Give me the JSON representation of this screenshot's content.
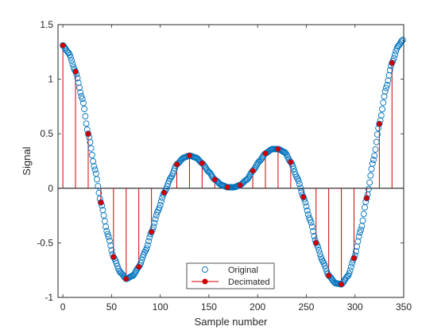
{
  "chart_data": {
    "type": "scatter",
    "xlabel": "Sample number",
    "ylabel": "Signal",
    "xlim": [
      -5,
      350
    ],
    "ylim": [
      -1,
      1.5
    ],
    "xticks": [
      0,
      50,
      100,
      150,
      200,
      250,
      300,
      350
    ],
    "xtick_labels": [
      "0",
      "50",
      "100",
      "150",
      "200",
      "250",
      "300",
      "350"
    ],
    "yticks": [
      -1,
      -0.5,
      0,
      0.5,
      1,
      1.5
    ],
    "ytick_labels": [
      "-1",
      "-0.5",
      "0",
      "0.5",
      "1",
      "1.5"
    ],
    "grid": false,
    "box": true,
    "legend_position": "bottom-center",
    "series": [
      {
        "name": "Original",
        "style": "open-circle markers",
        "color": "#0072BD",
        "x_start": 0,
        "x_end": 349,
        "x_step": 1,
        "control_points": [
          [
            0,
            1.31
          ],
          [
            6,
            1.24
          ],
          [
            13,
            1.07
          ],
          [
            20,
            0.82
          ],
          [
            26,
            0.5
          ],
          [
            33,
            0.17
          ],
          [
            39,
            -0.13
          ],
          [
            46,
            -0.42
          ],
          [
            52,
            -0.63
          ],
          [
            59,
            -0.77
          ],
          [
            65,
            -0.83
          ],
          [
            72,
            -0.8
          ],
          [
            78,
            -0.72
          ],
          [
            85,
            -0.57
          ],
          [
            91,
            -0.4
          ],
          [
            98,
            -0.2
          ],
          [
            104,
            -0.04
          ],
          [
            111,
            0.1
          ],
          [
            117,
            0.22
          ],
          [
            124,
            0.28
          ],
          [
            130,
            0.3
          ],
          [
            137,
            0.28
          ],
          [
            143,
            0.23
          ],
          [
            150,
            0.15
          ],
          [
            156,
            0.08
          ],
          [
            163,
            0.03
          ],
          [
            169,
            0.01
          ],
          [
            176,
            0.01
          ],
          [
            182,
            0.03
          ],
          [
            189,
            0.08
          ],
          [
            195,
            0.16
          ],
          [
            202,
            0.25
          ],
          [
            208,
            0.32
          ],
          [
            215,
            0.36
          ],
          [
            221,
            0.36
          ],
          [
            228,
            0.33
          ],
          [
            234,
            0.24
          ],
          [
            241,
            0.09
          ],
          [
            247,
            -0.08
          ],
          [
            254,
            -0.29
          ],
          [
            260,
            -0.5
          ],
          [
            267,
            -0.67
          ],
          [
            273,
            -0.8
          ],
          [
            280,
            -0.87
          ],
          [
            286,
            -0.88
          ],
          [
            293,
            -0.8
          ],
          [
            299,
            -0.64
          ],
          [
            306,
            -0.38
          ],
          [
            312,
            -0.09
          ],
          [
            319,
            0.26
          ],
          [
            325,
            0.59
          ],
          [
            332,
            0.92
          ],
          [
            338,
            1.15
          ],
          [
            344,
            1.3
          ],
          [
            349,
            1.36
          ]
        ]
      },
      {
        "name": "Decimated",
        "style": "stem with filled markers",
        "color": "#D10000",
        "x": [
          0,
          13,
          26,
          39,
          52,
          65,
          78,
          91,
          104,
          117,
          130,
          143,
          156,
          169,
          182,
          195,
          208,
          221,
          234,
          247,
          260,
          273,
          286,
          299,
          312,
          325,
          338
        ],
        "y": [
          1.31,
          1.07,
          0.5,
          -0.13,
          -0.63,
          -0.83,
          -0.72,
          -0.4,
          -0.04,
          0.22,
          0.3,
          0.23,
          0.08,
          0.01,
          0.03,
          0.16,
          0.32,
          0.36,
          0.24,
          -0.08,
          -0.5,
          -0.8,
          -0.88,
          -0.64,
          -0.09,
          0.59,
          1.15
        ]
      }
    ]
  }
}
